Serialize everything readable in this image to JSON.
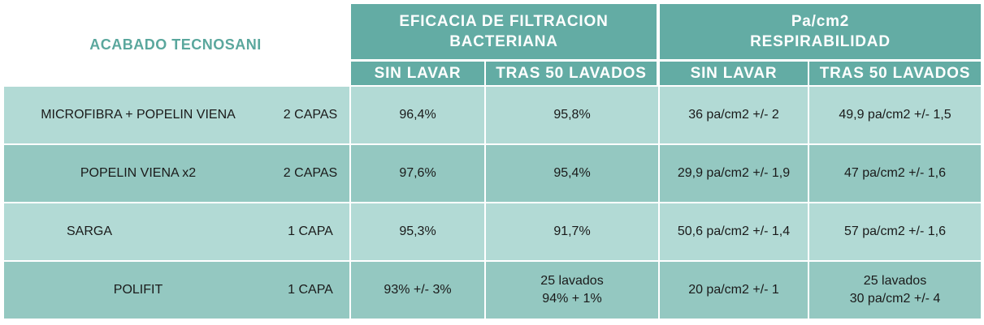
{
  "title": "ACABADO TECNOSANI",
  "groups": {
    "bfe": {
      "line1": "EFICACIA DE FILTRACION",
      "line2": "BACTERIANA"
    },
    "breath": {
      "line1": "Pa/cm2",
      "line2": "RESPIRABILIDAD"
    }
  },
  "subheaders": [
    "SIN LAVAR",
    "TRAS 50 LAVADOS",
    "SIN LAVAR",
    "TRAS 50 LAVADOS"
  ],
  "rows": [
    {
      "material": "MICROFIBRA + POPELIN VIENA",
      "layers": "2 CAPAS",
      "bfe_unwashed": "96,4%",
      "bfe_washed": "95,8%",
      "bfe_washed_2": "",
      "br_unwashed": "36 pa/cm2 +/- 2",
      "br_washed": "49,9 pa/cm2 +/- 1,5",
      "br_washed_2": ""
    },
    {
      "material": "POPELIN VIENA x2",
      "layers": "2 CAPAS",
      "bfe_unwashed": "97,6%",
      "bfe_washed": "95,4%",
      "bfe_washed_2": "",
      "br_unwashed": "29,9 pa/cm2 +/- 1,9",
      "br_washed": "47 pa/cm2 +/- 1,6",
      "br_washed_2": ""
    },
    {
      "material": "SARGA",
      "layers": "1 CAPA",
      "bfe_unwashed": "95,3%",
      "bfe_washed": "91,7%",
      "bfe_washed_2": "",
      "br_unwashed": "50,6 pa/cm2 +/- 1,4",
      "br_washed": "57 pa/cm2 +/- 1,6",
      "br_washed_2": ""
    },
    {
      "material": "POLIFIT",
      "layers": "1 CAPA",
      "bfe_unwashed": "93% +/- 3%",
      "bfe_washed": "25 lavados",
      "bfe_washed_2": "94% + 1%",
      "br_unwashed": "20 pa/cm2 +/- 1",
      "br_washed": "25 lavados",
      "br_washed_2": "30 pa/cm2 +/- 4"
    }
  ],
  "colors": {
    "header": "#63aca4",
    "row_light": "#b2dad5",
    "row_dark": "#94c8c1",
    "title": "#5aa79d"
  }
}
